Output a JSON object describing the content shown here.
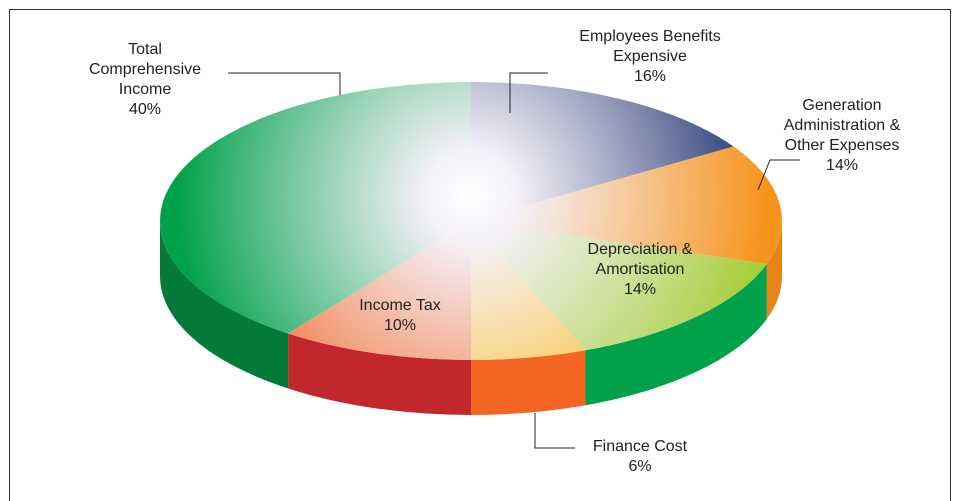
{
  "chart_data": {
    "type": "pie",
    "categories": [
      "Employees Benefits Expensive",
      "Generation Administration & Other Expenses",
      "Depreciation & Amortisation",
      "Finance Cost",
      "Income Tax",
      "Total Comprehensive Income"
    ],
    "values": [
      16,
      14,
      14,
      6,
      10,
      40
    ],
    "value_labels": [
      "16%",
      "14%",
      "14%",
      "6%",
      "10%",
      "40%"
    ],
    "colors": [
      "#1f3370",
      "#f7941d",
      "#a6ce39",
      "#fdb913",
      "#f26522",
      "#00a14b"
    ],
    "side_colors": [
      "#16275a",
      "#e8831a",
      "#00a14b",
      "#f26522",
      "#c1272d",
      "#047a3a"
    ]
  }
}
